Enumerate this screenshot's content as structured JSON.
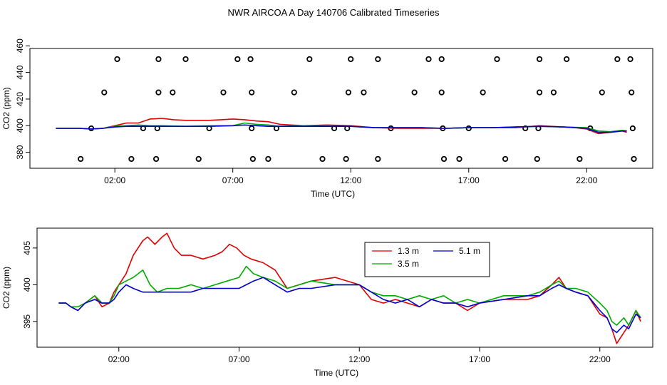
{
  "title": "NWR AIRCOA A  Day 140706  Calibrated Timeseries",
  "chart_data": [
    {
      "type": "scatter+line",
      "xlabel": "Time (UTC)",
      "ylabel": "CO2 (ppm)",
      "xlim": [
        -1.6,
        24.8
      ],
      "ylim": [
        368,
        458
      ],
      "xticks": [
        2,
        7,
        12,
        17,
        22
      ],
      "xtick_labels": [
        "02:00",
        "07:00",
        "12:00",
        "17:00",
        "22:00"
      ],
      "yticks": [
        380,
        400,
        420,
        440,
        460
      ],
      "ytick_labels": [
        "380",
        "400",
        "420",
        "440",
        "460"
      ],
      "calibration_points": [
        {
          "level": 450,
          "x": [
            2.1,
            3.85,
            5.0,
            7.2,
            7.75,
            10.25,
            12.0,
            13.15,
            15.3,
            15.85,
            18.2,
            20.0,
            21.15,
            23.3,
            23.85
          ]
        },
        {
          "level": 425,
          "x": [
            1.55,
            3.85,
            4.45,
            6.6,
            7.8,
            9.6,
            11.9,
            12.55,
            14.7,
            15.85,
            17.6,
            20.0,
            20.6,
            22.65,
            23.9
          ]
        },
        {
          "level": 398,
          "x": [
            1.0,
            3.2,
            3.8,
            6.0,
            7.8,
            8.85,
            11.3,
            11.85,
            13.7,
            15.9,
            17.0,
            19.4,
            19.95,
            22.15,
            23.95
          ]
        },
        {
          "level": 375,
          "x": [
            0.55,
            2.7,
            3.75,
            5.55,
            7.85,
            8.5,
            10.8,
            11.8,
            13.15,
            15.95,
            16.6,
            18.55,
            19.9,
            21.7,
            24.0
          ]
        }
      ],
      "series": [
        {
          "name": "1.3 m",
          "color": "#dd0000",
          "x": [
            -0.5,
            0.5,
            1.0,
            1.5,
            2.0,
            2.5,
            3.0,
            3.5,
            4.0,
            4.5,
            5.0,
            5.5,
            6.0,
            6.5,
            7.0,
            7.5,
            8.0,
            8.5,
            9.0,
            10.0,
            11.0,
            12.0,
            13.0,
            14.0,
            15.0,
            16.0,
            17.0,
            18.0,
            19.0,
            20.0,
            20.5,
            21.0,
            21.5,
            22.0,
            22.5,
            23.0,
            23.5,
            23.7
          ],
          "values": [
            398,
            398,
            397.5,
            398,
            400,
            402,
            402,
            405,
            405.5,
            404.5,
            404,
            404,
            404,
            404.5,
            405,
            404.5,
            403.5,
            403,
            401,
            400,
            400.5,
            400,
            398.5,
            398,
            398,
            398,
            398.5,
            398.5,
            398.5,
            400,
            399.5,
            399,
            398.5,
            397.5,
            394,
            395,
            396,
            395
          ]
        },
        {
          "name": "3.5 m",
          "color": "#00aa00",
          "x": [
            -0.5,
            0.5,
            1.0,
            1.5,
            2.0,
            2.5,
            3.0,
            3.5,
            4.0,
            5.0,
            6.0,
            7.0,
            7.5,
            8.0,
            8.5,
            9.0,
            10.0,
            11.0,
            12.0,
            13.0,
            14.0,
            15.0,
            16.0,
            17.0,
            18.0,
            19.0,
            20.0,
            21.0,
            22.0,
            22.5,
            23.0,
            23.5,
            23.7
          ],
          "values": [
            398,
            398,
            397.5,
            398,
            399.5,
            400,
            400.5,
            400,
            400,
            399.5,
            400,
            400,
            402,
            401,
            400.5,
            399.5,
            400,
            399.5,
            399.5,
            398.5,
            398.5,
            398.5,
            398,
            398.5,
            398.5,
            399,
            399.5,
            399,
            398.5,
            396,
            395.5,
            396.5,
            396
          ]
        },
        {
          "name": "5.1 m",
          "color": "#0000cc",
          "x": [
            -0.5,
            0.5,
            1.0,
            1.5,
            2.0,
            2.5,
            3.0,
            3.5,
            4.0,
            5.0,
            6.0,
            7.0,
            7.5,
            8.0,
            8.5,
            9.0,
            10.0,
            11.0,
            12.0,
            13.0,
            14.0,
            15.0,
            16.0,
            17.0,
            18.0,
            19.0,
            20.0,
            21.0,
            22.0,
            22.5,
            23.0,
            23.5,
            23.7
          ],
          "values": [
            398,
            398,
            397.5,
            398,
            399,
            399.5,
            399.5,
            399.5,
            399.5,
            399.5,
            399.5,
            400,
            400.5,
            400,
            399.5,
            399.5,
            399.5,
            399.5,
            399.5,
            398.5,
            398.5,
            398.5,
            398,
            398.5,
            398.5,
            399,
            399.5,
            399,
            398,
            395,
            395,
            396,
            396
          ]
        }
      ]
    },
    {
      "type": "line",
      "xlabel": "Time (UTC)",
      "ylabel": "CO2 (ppm)",
      "xlim": [
        -1.4,
        24.2
      ],
      "ylim": [
        391.5,
        407.7
      ],
      "xticks": [
        2,
        7,
        12,
        17,
        22
      ],
      "xtick_labels": [
        "02:00",
        "07:00",
        "12:00",
        "17:00",
        "22:00"
      ],
      "yticks": [
        395,
        400,
        405
      ],
      "ytick_labels": [
        "395",
        "400",
        "405"
      ],
      "legend": {
        "position": "top-center",
        "entries": [
          "1.3 m",
          "5.1 m",
          "3.5 m"
        ]
      },
      "series": [
        {
          "name": "1.3 m",
          "color": "#dd0000",
          "x": [
            -0.5,
            -0.2,
            0.0,
            0.3,
            0.6,
            1.0,
            1.3,
            1.6,
            1.8,
            2.0,
            2.3,
            2.6,
            3.0,
            3.2,
            3.5,
            3.8,
            4.0,
            4.3,
            4.6,
            5.0,
            5.5,
            6.0,
            6.3,
            6.6,
            6.9,
            7.2,
            7.5,
            8.0,
            8.5,
            9.0,
            9.5,
            10.0,
            11.0,
            12.0,
            12.5,
            13.0,
            13.5,
            14.0,
            14.5,
            15.0,
            15.5,
            16.0,
            16.5,
            17.0,
            18.0,
            19.0,
            19.5,
            20.0,
            20.3,
            20.6,
            21.0,
            21.5,
            22.0,
            22.3,
            22.5,
            22.7,
            23.0,
            23.2,
            23.5,
            23.7
          ],
          "values": [
            397.5,
            397.5,
            397,
            396.5,
            397.5,
            398.5,
            397,
            397.5,
            399,
            400,
            401.5,
            404,
            406,
            406.5,
            405.5,
            406.5,
            407,
            405,
            404,
            404,
            403.5,
            404,
            404.5,
            405.5,
            405,
            404,
            403.5,
            403,
            402,
            399.5,
            400,
            400.5,
            401,
            400,
            398,
            397.5,
            398,
            397.5,
            397,
            398,
            397.5,
            397.5,
            396.5,
            397.5,
            398,
            398,
            398.5,
            400,
            401,
            399.5,
            399,
            398.5,
            396,
            395.5,
            394,
            392,
            393.5,
            394.5,
            396.5,
            395
          ]
        },
        {
          "name": "3.5 m",
          "color": "#00aa00",
          "x": [
            -0.5,
            -0.2,
            0.0,
            0.3,
            0.6,
            1.0,
            1.3,
            1.6,
            1.8,
            2.0,
            2.3,
            2.6,
            3.0,
            3.3,
            3.6,
            4.0,
            4.5,
            5.0,
            5.5,
            6.0,
            6.5,
            7.0,
            7.3,
            7.6,
            8.0,
            8.5,
            9.0,
            9.5,
            10.0,
            11.0,
            12.0,
            12.5,
            13.0,
            13.5,
            14.0,
            14.5,
            15.0,
            15.5,
            16.0,
            16.5,
            17.0,
            18.0,
            19.0,
            19.5,
            20.0,
            20.3,
            20.6,
            21.0,
            21.5,
            22.0,
            22.3,
            22.5,
            22.7,
            23.0,
            23.2,
            23.5,
            23.7
          ],
          "values": [
            397.5,
            397.5,
            397,
            397,
            397.5,
            398.5,
            397.5,
            397.5,
            398.5,
            400,
            400.5,
            401,
            402,
            400,
            399,
            399.5,
            399.5,
            400,
            399.5,
            400,
            400.5,
            401,
            402.5,
            401.5,
            401,
            400.5,
            399.5,
            400,
            400.5,
            400,
            400,
            399,
            398.5,
            398.5,
            398,
            398.5,
            398,
            398.5,
            397.5,
            398,
            397.5,
            398.5,
            398.5,
            399,
            400,
            400.5,
            399.5,
            399.5,
            399,
            397.5,
            396.5,
            395,
            394.5,
            395.5,
            394.5,
            396.5,
            395.5
          ]
        },
        {
          "name": "5.1 m",
          "color": "#0000cc",
          "x": [
            -0.5,
            -0.2,
            0.0,
            0.3,
            0.6,
            1.0,
            1.3,
            1.6,
            1.8,
            2.0,
            2.3,
            2.6,
            3.0,
            3.3,
            3.6,
            4.0,
            4.5,
            5.0,
            5.5,
            6.0,
            6.5,
            7.0,
            7.3,
            7.6,
            8.0,
            8.5,
            9.0,
            9.5,
            10.0,
            11.0,
            12.0,
            12.5,
            13.0,
            13.5,
            14.0,
            14.5,
            15.0,
            15.5,
            16.0,
            16.5,
            17.0,
            18.0,
            19.0,
            19.5,
            20.0,
            20.3,
            20.6,
            21.0,
            21.5,
            22.0,
            22.3,
            22.5,
            22.7,
            23.0,
            23.2,
            23.5,
            23.7
          ],
          "values": [
            397.5,
            397.5,
            397,
            396.5,
            397.5,
            398,
            397.5,
            397.5,
            398,
            399,
            400,
            399.5,
            399,
            399,
            399,
            399,
            399,
            399,
            399.5,
            399.5,
            399.5,
            399.5,
            400,
            400.5,
            401,
            400,
            399,
            399.5,
            399.5,
            400,
            400,
            399,
            398,
            397.5,
            398,
            397,
            398,
            397.5,
            397.5,
            397,
            397.5,
            398,
            398.5,
            398.5,
            399.5,
            400,
            399.5,
            399,
            398.5,
            396.5,
            395.5,
            394,
            393.5,
            394.5,
            394,
            396,
            395.5
          ]
        }
      ]
    }
  ]
}
